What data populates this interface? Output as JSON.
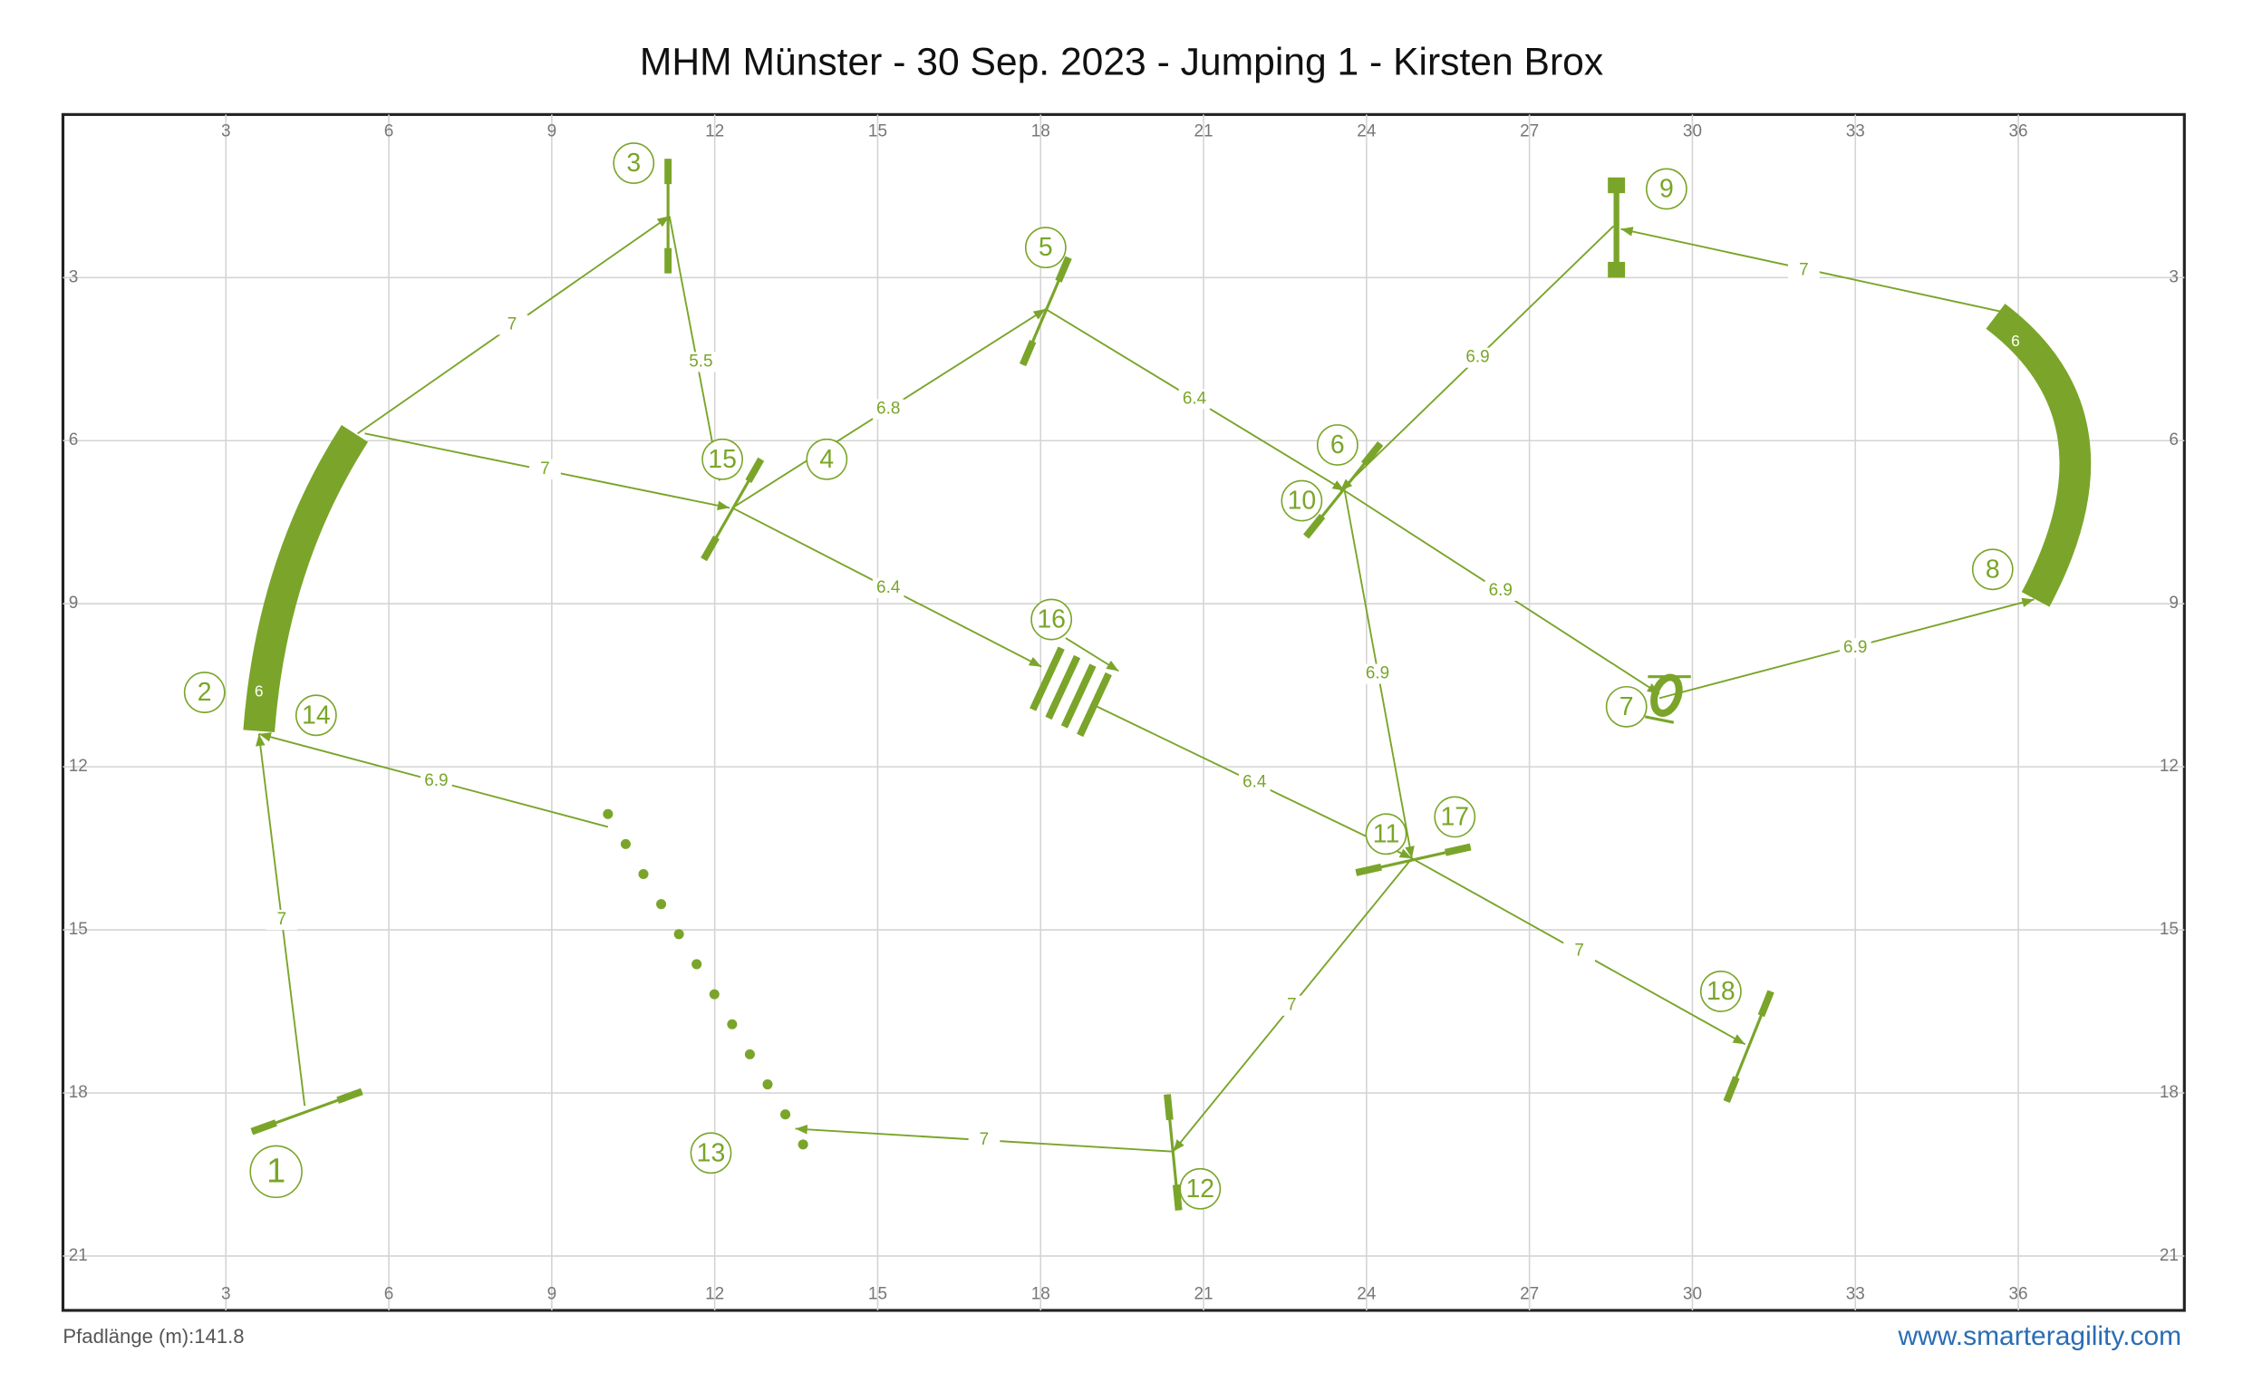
{
  "title": "MHM Münster - 30 Sep. 2023 - Jumping 1 - Kirsten Brox",
  "grid": {
    "x_ticks": [
      3,
      6,
      9,
      12,
      15,
      18,
      21,
      24,
      27,
      30,
      33,
      36
    ],
    "y_ticks": [
      3,
      6,
      9,
      12,
      15,
      18,
      21
    ]
  },
  "obstacles": [
    1,
    2,
    3,
    4,
    5,
    6,
    7,
    8,
    9,
    10,
    11,
    12,
    13,
    14,
    15,
    16,
    17,
    18
  ],
  "distances": [
    7,
    7,
    5.5,
    6.8,
    6.4,
    6.9,
    6.9,
    7,
    6.9,
    6.9,
    7,
    7,
    6.9,
    7,
    6.4,
    6.4,
    7
  ],
  "tunnels": [
    6,
    6
  ],
  "footer": {
    "path_length": "Pfadlänge (m):141.8",
    "website": "www.smarteragility.com"
  }
}
